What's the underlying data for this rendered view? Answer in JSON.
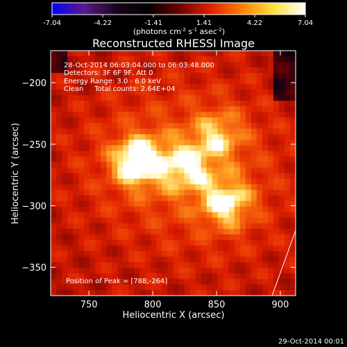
{
  "colorbar": {
    "ticks": [
      "-7.04",
      "-4.22",
      "-1.41",
      "1.41",
      "4.22",
      "7.04"
    ],
    "units": "(photons cm",
    "units_exp1": "-2",
    "units_mid": " s",
    "units_exp2": "-1",
    "units_tail": " asec",
    "units_exp3": "-2",
    "units_end": ")",
    "colors": [
      "#0000ff",
      "#5a1a8c",
      "#1a0520",
      "#000000",
      "#6a0000",
      "#e02000",
      "#ff8000",
      "#ffe040",
      "#ffffff"
    ]
  },
  "chart_data": {
    "type": "heatmap",
    "title": "Reconstructed RHESSI Image",
    "xlabel": "Heliocentric X (arcsec)",
    "ylabel": "Heliocentric Y (arcsec)",
    "xlim": [
      720,
      912
    ],
    "ylim": [
      -373,
      -174
    ],
    "xticks": [
      750,
      800,
      850,
      900
    ],
    "yticks": [
      -200,
      -250,
      -300,
      -350
    ],
    "sources": [
      {
        "x": 788,
        "y": -264,
        "peak": 1.0
      },
      {
        "x": 858,
        "y": -298,
        "peak": 0.78
      },
      {
        "x": 826,
        "y": -268,
        "peak": 0.62
      },
      {
        "x": 852,
        "y": -242,
        "peak": 0.55
      }
    ],
    "annotations": {
      "line1": "28-Oct-2014 06:03:04.000 to 06:03:48.000",
      "line2": "Detectors: 3F 6F 9F, Att 0",
      "line3": "Energy Range: 3.0 - 6.0 keV",
      "line4": "Clean     Total counts: 2.64E+04",
      "peak": "Position of Peak = [788,-264]"
    }
  },
  "footer": {
    "timestamp": "29-Oct-2014 00:01"
  }
}
